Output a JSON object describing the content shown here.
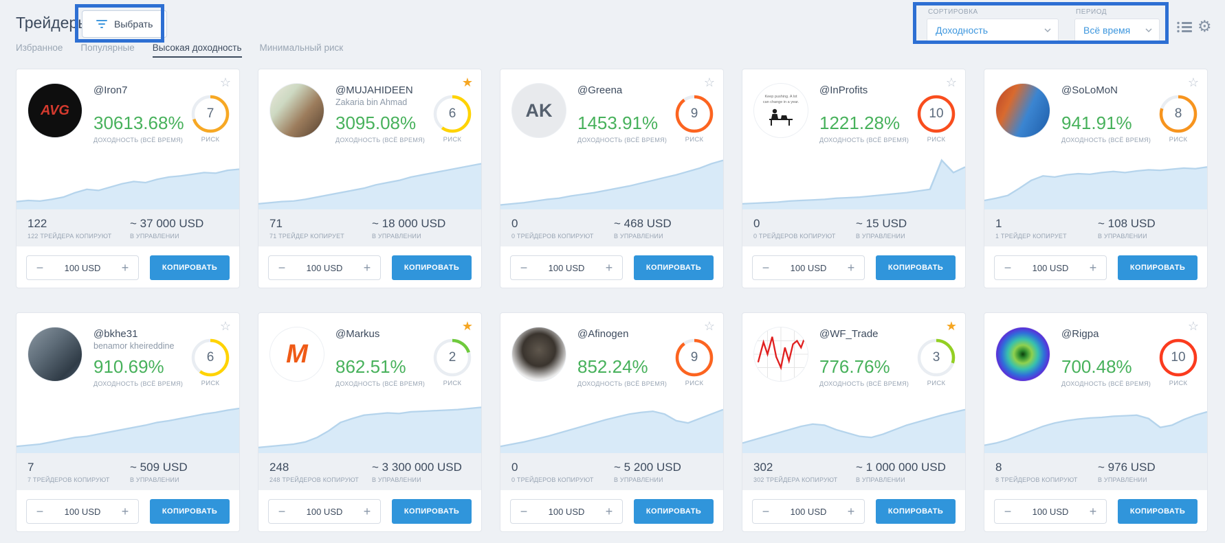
{
  "page": {
    "title": "Трейдеры",
    "select_button": "Выбрать",
    "tabs": [
      {
        "label": "Избранное",
        "active": false
      },
      {
        "label": "Популярные",
        "active": false
      },
      {
        "label": "Высокая доходность",
        "active": true
      },
      {
        "label": "Минимальный риск",
        "active": false
      }
    ],
    "sort": {
      "label": "СОРТИРОВКА",
      "value": "Доходность"
    },
    "period": {
      "label": "ПЕРИОД",
      "value": "Всё время"
    },
    "header_icons": [
      "list-view",
      "settings"
    ],
    "colors": {
      "accent_green": "#47b15b",
      "button_blue": "#3095db",
      "link_blue": "#3e97de",
      "annotation_blue": "#2d6fd3",
      "page_background": "#eef1f5",
      "star_orange": "#f5a623"
    }
  },
  "cards": [
    {
      "username": "@Iron7",
      "subtitle": "",
      "return_pct": "30613.68%",
      "return_label": "ДОХОДНОСТЬ (ВСЁ ВРЕМЯ)",
      "risk": {
        "value": "7",
        "label": "РИСК",
        "color": "#f7a824"
      },
      "favorited": false,
      "copiers": {
        "value": "122",
        "label": "122 ТРЕЙДЕРА КОПИРУЮТ"
      },
      "aum": {
        "value": "~ 37 000 USD",
        "label": "В УПРАВЛЕНИИ"
      },
      "amount": "100 USD",
      "copy_button": "КОПИРОВАТЬ",
      "avatar": {
        "kind": "logo",
        "desc": "avg-financial-logo",
        "bg": "#0e0e0e",
        "fg": "#d43a2e",
        "text": "AVG",
        "size": "20px",
        "style": "italic"
      },
      "chart": {
        "points": [
          14,
          16,
          15,
          18,
          22,
          30,
          36,
          34,
          40,
          46,
          50,
          48,
          54,
          58,
          60,
          63,
          66,
          65,
          70,
          72
        ]
      }
    },
    {
      "username": "@MUJAHIDEEN",
      "subtitle": "Zakaria bin Ahmad",
      "return_pct": "3095.08%",
      "return_label": "ДОХОДНОСТЬ (ВСЁ ВРЕМЯ)",
      "risk": {
        "value": "6",
        "label": "РИСК",
        "color": "#ffd301"
      },
      "favorited": true,
      "copiers": {
        "value": "71",
        "label": "71 ТРЕЙДЕР КОПИРУЕТ"
      },
      "aum": {
        "value": "~ 18 000 USD",
        "label": "В УПРАВЛЕНИИ"
      },
      "amount": "100 USD",
      "copy_button": "КОПИРОВАТЬ",
      "avatar": {
        "kind": "photo",
        "desc": "photo-man-liteforex-banner",
        "bg": "linear-gradient(130deg,#ece9dd 0%,#cdd9c2 30%,#9c7c5c 62%,#54402f 100%)"
      },
      "chart": {
        "points": [
          10,
          12,
          14,
          15,
          18,
          22,
          26,
          30,
          34,
          38,
          44,
          48,
          52,
          58,
          62,
          66,
          70,
          74,
          78,
          82
        ]
      }
    },
    {
      "username": "@Greena",
      "subtitle": "",
      "return_pct": "1453.91%",
      "return_label": "ДОХОДНОСТЬ (ВСЁ ВРЕМЯ)",
      "risk": {
        "value": "9",
        "label": "РИСК",
        "color": "#fc6420"
      },
      "favorited": false,
      "copiers": {
        "value": "0",
        "label": "0 ТРЕЙДЕРОВ КОПИРУЮТ"
      },
      "aum": {
        "value": "~ 468 USD",
        "label": "В УПРАВЛЕНИИ"
      },
      "amount": "100 USD",
      "copy_button": "КОПИРОВАТЬ",
      "avatar": {
        "kind": "initials",
        "desc": "initials-ak",
        "bg": "#e8eaed",
        "fg": "#55606e",
        "text": "AK",
        "size": "27px",
        "style": "normal"
      },
      "chart": {
        "points": [
          8,
          10,
          12,
          15,
          18,
          20,
          24,
          27,
          30,
          34,
          38,
          42,
          47,
          52,
          57,
          62,
          68,
          74,
          82,
          88
        ]
      }
    },
    {
      "username": "@InProfits",
      "subtitle": "",
      "return_pct": "1221.28%",
      "return_label": "ДОХОДНОСТЬ (ВСЁ ВРЕМЯ)",
      "risk": {
        "value": "10",
        "label": "РИСК",
        "color": "#f94d1d"
      },
      "favorited": false,
      "copiers": {
        "value": "0",
        "label": "0 ТРЕЙДЕРОВ КОПИРУЮТ"
      },
      "aum": {
        "value": "~ 15 USD",
        "label": "В УПРАВЛЕНИИ"
      },
      "amount": "100 USD",
      "copy_button": "КОПИРОВАТЬ",
      "avatar": {
        "kind": "desk",
        "desc": "person-at-desk-illustration",
        "bg": "#ffffff",
        "caption": "Keep pushing. A lot can change in a year."
      },
      "chart": {
        "points": [
          10,
          11,
          12,
          13,
          15,
          16,
          17,
          18,
          20,
          21,
          22,
          24,
          26,
          28,
          30,
          33,
          36,
          88,
          66,
          76
        ]
      }
    },
    {
      "username": "@SoLoMoN",
      "subtitle": "",
      "return_pct": "941.91%",
      "return_label": "ДОХОДНОСТЬ (ВСЁ ВРЕМЯ)",
      "risk": {
        "value": "8",
        "label": "РИСК",
        "color": "#f7941e"
      },
      "favorited": false,
      "copiers": {
        "value": "1",
        "label": "1 ТРЕЙДЕР КОПИРУЕТ"
      },
      "aum": {
        "value": "~ 108 USD",
        "label": "В УПРАВЛЕНИИ"
      },
      "amount": "100 USD",
      "copy_button": "КОПИРОВАТЬ",
      "avatar": {
        "kind": "photo",
        "desc": "photo-man-blue-jacket",
        "bg": "linear-gradient(115deg,#b8432a 0%,#d96a2e 28%,#3b85d1 58%,#1d5ca8 100%)"
      },
      "chart": {
        "points": [
          16,
          20,
          25,
          38,
          52,
          60,
          58,
          62,
          64,
          63,
          66,
          68,
          66,
          69,
          71,
          70,
          72,
          74,
          73,
          76
        ]
      }
    },
    {
      "username": "@bkhe31",
      "subtitle": "benamor kheireddine",
      "return_pct": "910.69%",
      "return_label": "ДОХОДНОСТЬ (ВСЁ ВРЕМЯ)",
      "risk": {
        "value": "6",
        "label": "РИСК",
        "color": "#ffd301"
      },
      "favorited": false,
      "copiers": {
        "value": "7",
        "label": "7 ТРЕЙДЕРОВ КОПИРУЮТ"
      },
      "aum": {
        "value": "~ 509 USD",
        "label": "В УПРАВЛЕНИИ"
      },
      "amount": "100 USD",
      "copy_button": "КОПИРОВАТЬ",
      "avatar": {
        "kind": "photo",
        "desc": "photo-man-selfie",
        "bg": "linear-gradient(135deg,#8a97a2 0%,#5d6b77 40%,#303c47 78%,#4a5d70 100%)"
      },
      "chart": {
        "points": [
          12,
          14,
          16,
          20,
          24,
          28,
          30,
          34,
          38,
          42,
          46,
          50,
          55,
          58,
          62,
          66,
          70,
          73,
          77,
          80
        ]
      }
    },
    {
      "username": "@Markus",
      "subtitle": "",
      "return_pct": "862.51%",
      "return_label": "ДОХОДНОСТЬ (ВСЁ ВРЕМЯ)",
      "risk": {
        "value": "2",
        "label": "РИСК",
        "color": "#6fca3c"
      },
      "favorited": true,
      "copiers": {
        "value": "248",
        "label": "248 ТРЕЙДЕРОВ КОПИРУЮТ"
      },
      "aum": {
        "value": "~ 3 300 000 USD",
        "label": "В УПРАВЛЕНИИ"
      },
      "amount": "100 USD",
      "copy_button": "КОПИРОВАТЬ",
      "avatar": {
        "kind": "logo",
        "desc": "markus-m-logo",
        "bg": "#ffffff",
        "fg": "#ef5a16",
        "text": "M",
        "size": "38px",
        "style": "italic"
      },
      "chart": {
        "points": [
          10,
          12,
          14,
          16,
          20,
          28,
          40,
          55,
          62,
          68,
          70,
          72,
          71,
          74,
          75,
          76,
          77,
          78,
          80,
          82
        ]
      }
    },
    {
      "username": "@Afinogen",
      "subtitle": "",
      "return_pct": "852.24%",
      "return_label": "ДОХОДНОСТЬ (ВСЁ ВРЕМЯ)",
      "risk": {
        "value": "9",
        "label": "РИСК",
        "color": "#fc6420"
      },
      "favorited": false,
      "copiers": {
        "value": "0",
        "label": "0 ТРЕЙДЕРОВ КОПИРУЮТ"
      },
      "aum": {
        "value": "~ 5 200 USD",
        "label": "В УПРАВЛЕНИИ"
      },
      "amount": "100 USD",
      "copy_button": "КОПИРОВАТЬ",
      "avatar": {
        "kind": "photo",
        "desc": "gremlin-in-suit-photo",
        "bg": "radial-gradient(circle at 50% 42%,#5f574d 0%,#3a342e 40%,#ececec 72%,#f7f7f7 100%)"
      },
      "chart": {
        "points": [
          12,
          16,
          20,
          25,
          30,
          36,
          42,
          48,
          54,
          60,
          65,
          70,
          73,
          75,
          70,
          58,
          54,
          62,
          70,
          78
        ]
      }
    },
    {
      "username": "@WF_Trade",
      "subtitle": "",
      "return_pct": "776.76%",
      "return_label": "ДОХОДНОСТЬ (ВСЁ ВРЕМЯ)",
      "risk": {
        "value": "3",
        "label": "РИСК",
        "color": "#93cf23"
      },
      "favorited": true,
      "copiers": {
        "value": "302",
        "label": "302 ТРЕЙДЕРА КОПИРУЮТ"
      },
      "aum": {
        "value": "~ 1 000 000 USD",
        "label": "В УПРАВЛЕНИИ"
      },
      "amount": "100 USD",
      "copy_button": "КОПИРОВАТЬ",
      "avatar": {
        "kind": "chart",
        "desc": "red-price-chart-avatar",
        "bg": "#ffffff"
      },
      "chart": {
        "points": [
          18,
          24,
          30,
          36,
          42,
          48,
          52,
          50,
          42,
          36,
          30,
          28,
          34,
          42,
          50,
          56,
          62,
          68,
          73,
          78
        ]
      }
    },
    {
      "username": "@Rigpa",
      "subtitle": "",
      "return_pct": "700.48%",
      "return_label": "ДОХОДНОСТЬ (ВСЁ ВРЕМЯ)",
      "risk": {
        "value": "10",
        "label": "РИСК",
        "color": "#fb3b1e"
      },
      "favorited": false,
      "copiers": {
        "value": "8",
        "label": "8 ТРЕЙДЕРОВ КОПИРУЮТ"
      },
      "aum": {
        "value": "~ 976 USD",
        "label": "В УПРАВЛЕНИИ"
      },
      "amount": "100 USD",
      "copy_button": "КОПИРОВАТЬ",
      "avatar": {
        "kind": "rainbow",
        "desc": "rainbow-mandala-avatar",
        "bg": "radial-gradient(circle,#0b3d0b 0%,#2e8b2e 10%,#8fd14f 24%,#37c0ae 40%,#2f6fd9 56%,#5a2fd9 70%,#a02fd9 82%,#d92fb0 90%,#2a0836 100%)"
      },
      "chart": {
        "points": [
          14,
          18,
          24,
          32,
          40,
          48,
          54,
          58,
          61,
          63,
          64,
          66,
          67,
          68,
          62,
          46,
          50,
          60,
          68,
          74
        ]
      }
    }
  ]
}
